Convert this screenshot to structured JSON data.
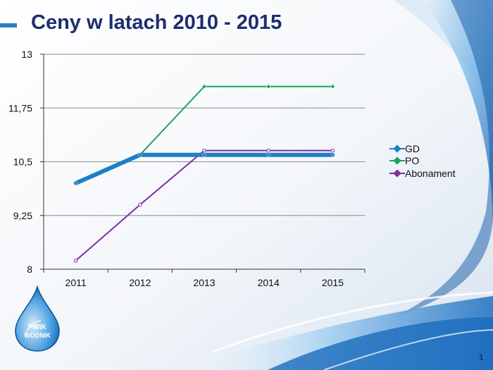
{
  "slide": {
    "title": "Ceny w latach 2010 - 2015",
    "page_number": "1"
  },
  "logo": {
    "text_line1": "PWiK",
    "text_line2": "WODNIK"
  },
  "colors": {
    "title": "#1d2e6e",
    "accent": "#2a7fc4",
    "GD": "#1f7fc4",
    "PO": "#1fa35a",
    "Abonament": "#7b2fa0"
  },
  "chart_data": {
    "type": "line",
    "categories": [
      "2011",
      "2012",
      "2013",
      "2014",
      "2015"
    ],
    "ylim": [
      8,
      13
    ],
    "yticks": [
      8,
      9.25,
      10.5,
      11.75,
      13
    ],
    "ytick_labels": [
      "8",
      "9,25",
      "10,5",
      "11,75",
      "13"
    ],
    "grid": true,
    "legend_position": "right",
    "series": [
      {
        "name": "GD",
        "values": [
          10.0,
          10.66,
          10.66,
          10.66,
          10.66
        ]
      },
      {
        "name": "PO",
        "values": [
          10.0,
          10.66,
          12.25,
          12.25,
          12.25
        ]
      },
      {
        "name": "Abonament",
        "values": [
          8.2,
          9.5,
          10.76,
          10.76,
          10.76
        ]
      }
    ]
  }
}
